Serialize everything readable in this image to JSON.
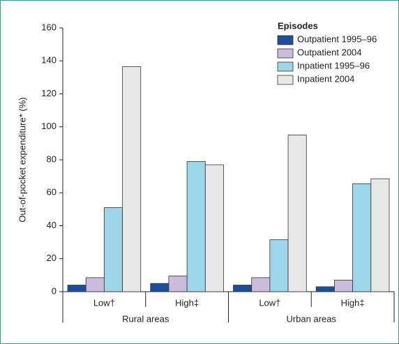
{
  "chart_data": {
    "type": "bar",
    "y_label": "Out-of-pocket expenditure* (%)",
    "legend_title": "Episodes",
    "legend_position": "upper right",
    "categories": [
      "Low†",
      "High‡",
      "Low†",
      "High‡"
    ],
    "groups": [
      "Rural areas",
      "Urban areas"
    ],
    "series": [
      {
        "name": "Outpatient 1995–96",
        "color": "#1b4f9a",
        "values": [
          4,
          5,
          4,
          3
        ]
      },
      {
        "name": "Outpatient 2004",
        "color": "#cbbbdd",
        "values": [
          8.5,
          9.5,
          8.5,
          7
        ]
      },
      {
        "name": "Inpatient 1995–96",
        "color": "#9dd6e8",
        "values": [
          51,
          79,
          31.5,
          65.5
        ]
      },
      {
        "name": "Inpatient 2004",
        "color": "#e8e8e8",
        "values": [
          136.5,
          77,
          95,
          68.5
        ]
      }
    ],
    "ylim": [
      0,
      160
    ],
    "yticks": [
      0,
      20,
      40,
      60,
      80,
      100,
      120,
      140,
      160
    ]
  }
}
